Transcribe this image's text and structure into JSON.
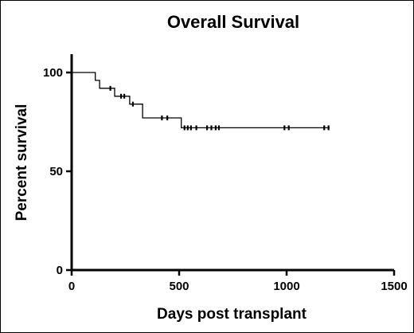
{
  "chart_data": {
    "type": "line",
    "title": "Overall Survival",
    "xlabel": "Days post transplant",
    "ylabel": "Percent survival",
    "xlim": [
      0,
      1500
    ],
    "ylim": [
      0,
      100
    ],
    "x_ticks": [
      "0",
      "500",
      "1000",
      "1500"
    ],
    "y_ticks": [
      "0",
      "50",
      "100"
    ],
    "grid": false,
    "legend": "none",
    "line_color": "#000000",
    "series": [
      {
        "step": [
          [
            0,
            100
          ],
          [
            110,
            100
          ],
          [
            110,
            96
          ],
          [
            130,
            96
          ],
          [
            130,
            92
          ],
          [
            200,
            92
          ],
          [
            200,
            88
          ],
          [
            270,
            88
          ],
          [
            270,
            84
          ],
          [
            330,
            84
          ],
          [
            330,
            77
          ],
          [
            510,
            77
          ],
          [
            510,
            72
          ],
          [
            1200,
            72
          ]
        ],
        "censored": [
          [
            180,
            92
          ],
          [
            230,
            88
          ],
          [
            245,
            88
          ],
          [
            285,
            84
          ],
          [
            420,
            77
          ],
          [
            445,
            77
          ],
          [
            525,
            72
          ],
          [
            540,
            72
          ],
          [
            555,
            72
          ],
          [
            580,
            72
          ],
          [
            630,
            72
          ],
          [
            650,
            72
          ],
          [
            670,
            72
          ],
          [
            685,
            72
          ],
          [
            990,
            72
          ],
          [
            1010,
            72
          ],
          [
            1175,
            72
          ],
          [
            1195,
            72
          ]
        ]
      }
    ]
  }
}
